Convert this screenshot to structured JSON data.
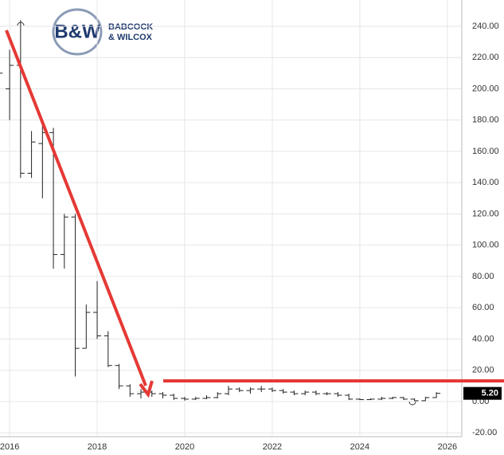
{
  "logo": {
    "mark": "B&W",
    "line1": "BABCOCK",
    "line2": "& WILCOX"
  },
  "chart_data": {
    "type": "ohlc",
    "x": [
      2015.75,
      2016.0,
      2016.25,
      2016.5,
      2016.75,
      2017.0,
      2017.25,
      2017.5,
      2017.75,
      2018.0,
      2018.25,
      2018.5,
      2018.75,
      2019.0,
      2019.25,
      2019.5,
      2019.75,
      2020.0,
      2020.25,
      2020.5,
      2020.75,
      2021.0,
      2021.25,
      2021.5,
      2021.75,
      2022.0,
      2022.25,
      2022.5,
      2022.75,
      2023.0,
      2023.25,
      2023.5,
      2023.75,
      2024.0,
      2024.25,
      2024.5,
      2024.75,
      2025.0,
      2025.25,
      2025.5,
      2025.75
    ],
    "open": [
      212,
      200,
      215,
      146,
      165,
      172,
      94,
      118,
      34,
      57,
      42,
      23,
      10,
      5,
      6,
      5,
      4,
      2,
      1.5,
      2,
      2.5,
      5,
      8,
      7,
      8,
      8,
      7,
      6,
      5,
      6,
      5,
      5,
      4,
      1.5,
      1.2,
      1.5,
      2,
      2.5,
      1.5,
      0.5,
      2.5
    ],
    "high": [
      220,
      225,
      244,
      173,
      178,
      175,
      120,
      120,
      62,
      77,
      45,
      24,
      11,
      8,
      7,
      6,
      5,
      3,
      3,
      4,
      6,
      10,
      9,
      9,
      10,
      9,
      8,
      7,
      7,
      7,
      6,
      6,
      5,
      2,
      2,
      3,
      3,
      3,
      2,
      3,
      6
    ],
    "low": [
      158,
      180,
      143,
      143,
      130,
      85,
      85,
      16,
      34,
      40,
      22,
      8,
      3,
      2,
      3,
      2,
      1,
      0.5,
      1,
      1.5,
      2,
      4,
      6,
      5,
      6,
      6,
      5,
      4,
      4,
      4,
      4,
      3,
      1,
      1,
      1,
      1,
      1.5,
      1,
      0.3,
      0.4,
      2.3
    ],
    "close": [
      210,
      215,
      146,
      166,
      172,
      94,
      118,
      34,
      57,
      42,
      23,
      10,
      5,
      6,
      5,
      4,
      2,
      1.5,
      2,
      2.5,
      5,
      8,
      7,
      8,
      8,
      7,
      6,
      5,
      6,
      5,
      5,
      4,
      1.5,
      1.2,
      1.5,
      2,
      2.5,
      1.5,
      0.5,
      2.5,
      5.2
    ],
    "color": "#222222",
    "xlim": [
      2015.78,
      2026.33
    ],
    "xticks": [
      2016,
      2018,
      2020,
      2022,
      2024,
      2026
    ],
    "ylim": [
      -22.5,
      256.8
    ],
    "yticks": [
      {
        "value": -20,
        "label": "-20.00"
      },
      {
        "value": 0,
        "label": "0.00"
      },
      {
        "value": 20,
        "label": "20.00"
      },
      {
        "value": 40,
        "label": "40.00"
      },
      {
        "value": 60,
        "label": "60.00"
      },
      {
        "value": 80,
        "label": "80.00"
      },
      {
        "value": 100,
        "label": "100.00"
      },
      {
        "value": 120,
        "label": "120.00"
      },
      {
        "value": 140,
        "label": "140.00"
      },
      {
        "value": 160,
        "label": "160.00"
      },
      {
        "value": 180,
        "label": "180.00"
      },
      {
        "value": 200,
        "label": "200.00"
      },
      {
        "value": 220,
        "label": "220.00"
      },
      {
        "value": 240,
        "label": "240.00"
      }
    ],
    "last_price": {
      "value": 5.2,
      "label": "5.20"
    },
    "grid": true
  }
}
